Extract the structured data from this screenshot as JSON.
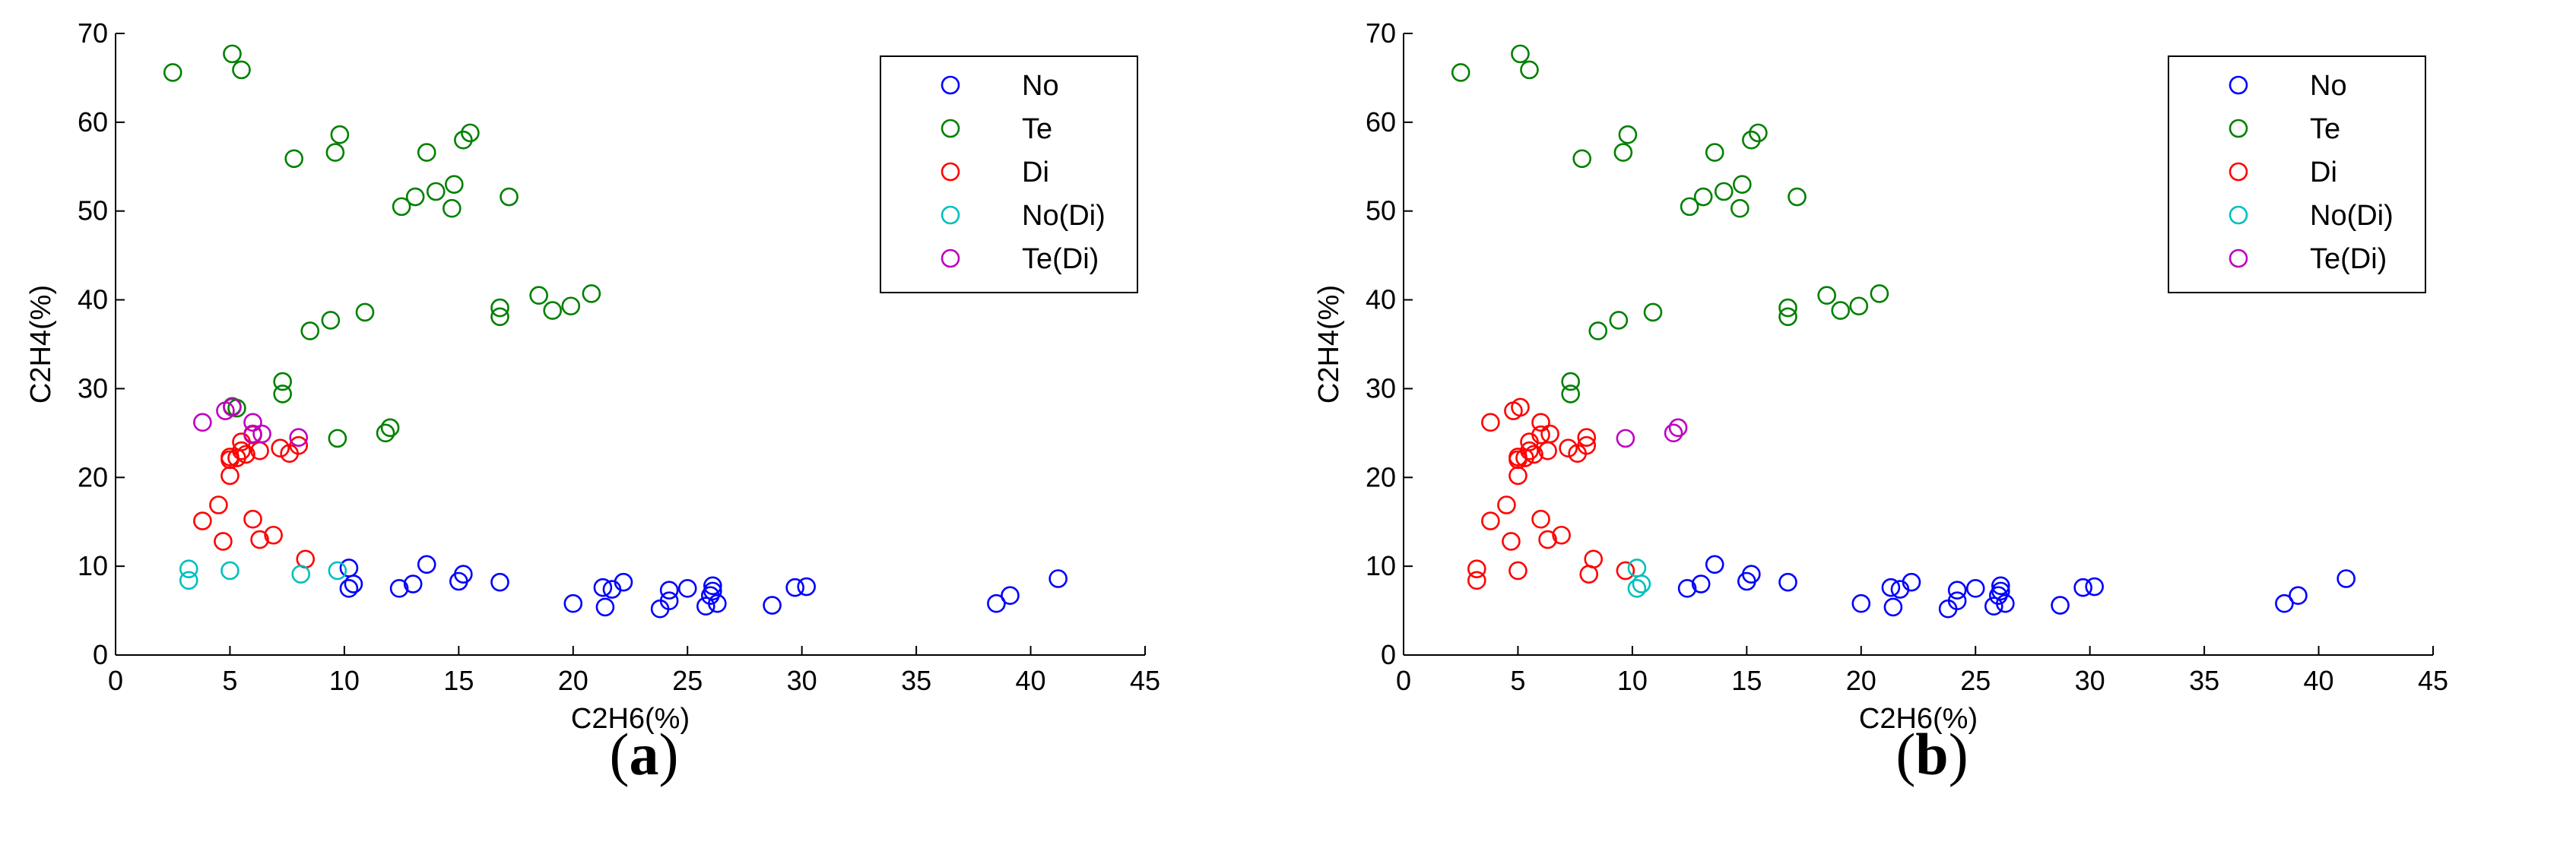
{
  "colors": {
    "No": "#0000ff",
    "Te": "#008000",
    "Di": "#ff0000",
    "No(Di)": "#00bfbf",
    "Te(Di)": "#bf00bf"
  },
  "chart_data": [
    {
      "type": "scatter",
      "caption": "a",
      "xlabel": "C2H6(%)",
      "ylabel": "C2H4(%)",
      "xlim": [
        0,
        45
      ],
      "ylim": [
        0,
        70
      ],
      "xticks": [
        0,
        5,
        10,
        15,
        20,
        25,
        30,
        35,
        40,
        45
      ],
      "yticks": [
        0,
        10,
        20,
        30,
        40,
        50,
        60,
        70
      ],
      "legend": [
        "No",
        "Te",
        "Di",
        "No(Di)",
        "Te(Di)"
      ],
      "legend_location": "top-right",
      "series": [
        {
          "name": "No",
          "points": [
            [
              10.2,
              9.8
            ],
            [
              10.2,
              7.5
            ],
            [
              10.4,
              8
            ],
            [
              12.4,
              7.5
            ],
            [
              13,
              8
            ],
            [
              13.6,
              10.2
            ],
            [
              15,
              8.3
            ],
            [
              15.2,
              9.1
            ],
            [
              16.8,
              8.2
            ],
            [
              20,
              5.8
            ],
            [
              21.3,
              7.6
            ],
            [
              21.4,
              5.4
            ],
            [
              21.7,
              7.4
            ],
            [
              22.2,
              8.2
            ],
            [
              23.8,
              5.2
            ],
            [
              24.2,
              6.1
            ],
            [
              24.2,
              7.3
            ],
            [
              25,
              7.5
            ],
            [
              25.8,
              5.5
            ],
            [
              26,
              6.7
            ],
            [
              26.1,
              7.8
            ],
            [
              26.1,
              7.2
            ],
            [
              26.3,
              5.8
            ],
            [
              28.7,
              5.6
            ],
            [
              29.7,
              7.6
            ],
            [
              30.2,
              7.7
            ],
            [
              38.5,
              5.8
            ],
            [
              39.1,
              6.7
            ],
            [
              41.2,
              8.6
            ]
          ]
        },
        {
          "name": "Te",
          "points": [
            [
              2.5,
              65.6
            ],
            [
              5.1,
              67.7
            ],
            [
              5.5,
              65.9
            ],
            [
              5.1,
              28
            ],
            [
              5.3,
              27.8
            ],
            [
              7.3,
              30.8
            ],
            [
              7.3,
              29.4
            ],
            [
              7.8,
              55.9
            ],
            [
              8.5,
              36.5
            ],
            [
              9.4,
              37.7
            ],
            [
              9.6,
              56.6
            ],
            [
              9.7,
              24.4
            ],
            [
              9.8,
              58.6
            ],
            [
              10.9,
              38.6
            ],
            [
              11.8,
              25
            ],
            [
              12,
              25.6
            ],
            [
              12.5,
              50.5
            ],
            [
              13.1,
              51.6
            ],
            [
              13.6,
              56.6
            ],
            [
              14,
              52.2
            ],
            [
              14.7,
              50.3
            ],
            [
              14.8,
              53
            ],
            [
              15.2,
              58
            ],
            [
              15.5,
              58.8
            ],
            [
              16.8,
              38.1
            ],
            [
              16.8,
              39.1
            ],
            [
              17.2,
              51.6
            ],
            [
              18.5,
              40.5
            ],
            [
              19.1,
              38.8
            ],
            [
              19.9,
              39.3
            ],
            [
              20.8,
              40.7
            ]
          ]
        },
        {
          "name": "Di",
          "points": [
            [
              3.8,
              15.1
            ],
            [
              4.5,
              16.9
            ],
            [
              4.7,
              12.8
            ],
            [
              5,
              20.2
            ],
            [
              5,
              22
            ],
            [
              5,
              22.3
            ],
            [
              5.3,
              22.2
            ],
            [
              5.5,
              23
            ],
            [
              5.5,
              24
            ],
            [
              5.7,
              22.6
            ],
            [
              6,
              24.8
            ],
            [
              6,
              15.3
            ],
            [
              6.3,
              23
            ],
            [
              6.3,
              13
            ],
            [
              6.9,
              13.5
            ],
            [
              7.2,
              23.3
            ],
            [
              7.6,
              22.7
            ],
            [
              8,
              23.6
            ],
            [
              8.3,
              10.8
            ]
          ]
        },
        {
          "name": "No(Di)",
          "points": [
            [
              3.2,
              9.7
            ],
            [
              3.2,
              8.4
            ],
            [
              5,
              9.5
            ],
            [
              8.1,
              9.1
            ],
            [
              9.7,
              9.5
            ]
          ]
        },
        {
          "name": "Te(Di)",
          "points": [
            [
              3.8,
              26.2
            ],
            [
              4.8,
              27.5
            ],
            [
              5.1,
              27.9
            ],
            [
              6,
              26.2
            ],
            [
              6,
              24.9
            ],
            [
              6.4,
              24.9
            ],
            [
              8,
              24.5
            ]
          ]
        }
      ]
    },
    {
      "type": "scatter",
      "caption": "b",
      "xlabel": "C2H6(%)",
      "ylabel": "C2H4(%)",
      "xlim": [
        0,
        45
      ],
      "ylim": [
        0,
        70
      ],
      "xticks": [
        0,
        5,
        10,
        15,
        20,
        25,
        30,
        35,
        40,
        45
      ],
      "yticks": [
        0,
        10,
        20,
        30,
        40,
        50,
        60,
        70
      ],
      "legend": [
        "No",
        "Te",
        "Di",
        "No(Di)",
        "Te(Di)"
      ],
      "legend_location": "top-right",
      "series": [
        {
          "name": "No",
          "points": [
            [
              12.4,
              7.5
            ],
            [
              13,
              8
            ],
            [
              13.6,
              10.2
            ],
            [
              15,
              8.3
            ],
            [
              15.2,
              9.1
            ],
            [
              16.8,
              8.2
            ],
            [
              20,
              5.8
            ],
            [
              21.3,
              7.6
            ],
            [
              21.4,
              5.4
            ],
            [
              21.7,
              7.4
            ],
            [
              22.2,
              8.2
            ],
            [
              23.8,
              5.2
            ],
            [
              24.2,
              6.1
            ],
            [
              24.2,
              7.3
            ],
            [
              25,
              7.5
            ],
            [
              25.8,
              5.5
            ],
            [
              26,
              6.7
            ],
            [
              26.1,
              7.8
            ],
            [
              26.1,
              7.2
            ],
            [
              26.3,
              5.8
            ],
            [
              28.7,
              5.6
            ],
            [
              29.7,
              7.6
            ],
            [
              30.2,
              7.7
            ],
            [
              38.5,
              5.8
            ],
            [
              39.1,
              6.7
            ],
            [
              41.2,
              8.6
            ]
          ]
        },
        {
          "name": "Te",
          "points": [
            [
              2.5,
              65.6
            ],
            [
              5.1,
              67.7
            ],
            [
              5.5,
              65.9
            ],
            [
              7.3,
              30.8
            ],
            [
              7.3,
              29.4
            ],
            [
              7.8,
              55.9
            ],
            [
              8.5,
              36.5
            ],
            [
              9.4,
              37.7
            ],
            [
              9.6,
              56.6
            ],
            [
              9.8,
              58.6
            ],
            [
              10.9,
              38.6
            ],
            [
              12.5,
              50.5
            ],
            [
              13.1,
              51.6
            ],
            [
              13.6,
              56.6
            ],
            [
              14,
              52.2
            ],
            [
              14.7,
              50.3
            ],
            [
              14.8,
              53
            ],
            [
              15.2,
              58
            ],
            [
              15.5,
              58.8
            ],
            [
              16.8,
              38.1
            ],
            [
              16.8,
              39.1
            ],
            [
              17.2,
              51.6
            ],
            [
              18.5,
              40.5
            ],
            [
              19.1,
              38.8
            ],
            [
              19.9,
              39.3
            ],
            [
              20.8,
              40.7
            ]
          ]
        },
        {
          "name": "Di",
          "points": [
            [
              3.2,
              9.7
            ],
            [
              3.2,
              8.4
            ],
            [
              3.8,
              26.2
            ],
            [
              3.8,
              15.1
            ],
            [
              4.5,
              16.9
            ],
            [
              4.7,
              12.8
            ],
            [
              4.8,
              27.5
            ],
            [
              5,
              20.2
            ],
            [
              5,
              22
            ],
            [
              5,
              22.3
            ],
            [
              5,
              9.5
            ],
            [
              5.1,
              27.9
            ],
            [
              5.3,
              22.2
            ],
            [
              5.5,
              23
            ],
            [
              5.5,
              24
            ],
            [
              5.7,
              22.6
            ],
            [
              6,
              24.8
            ],
            [
              6,
              26.2
            ],
            [
              6,
              15.3
            ],
            [
              6.3,
              23
            ],
            [
              6.3,
              13
            ],
            [
              6.4,
              24.9
            ],
            [
              6.9,
              13.5
            ],
            [
              7.2,
              23.3
            ],
            [
              7.6,
              22.7
            ],
            [
              8,
              23.6
            ],
            [
              8,
              24.5
            ],
            [
              8.1,
              9.1
            ],
            [
              8.3,
              10.8
            ],
            [
              9.7,
              9.5
            ]
          ]
        },
        {
          "name": "No(Di)",
          "points": [
            [
              10.2,
              9.8
            ],
            [
              10.2,
              7.5
            ],
            [
              10.4,
              8
            ]
          ]
        },
        {
          "name": "Te(Di)",
          "points": [
            [
              9.7,
              24.4
            ],
            [
              11.8,
              25
            ],
            [
              12,
              25.6
            ]
          ]
        }
      ]
    }
  ]
}
